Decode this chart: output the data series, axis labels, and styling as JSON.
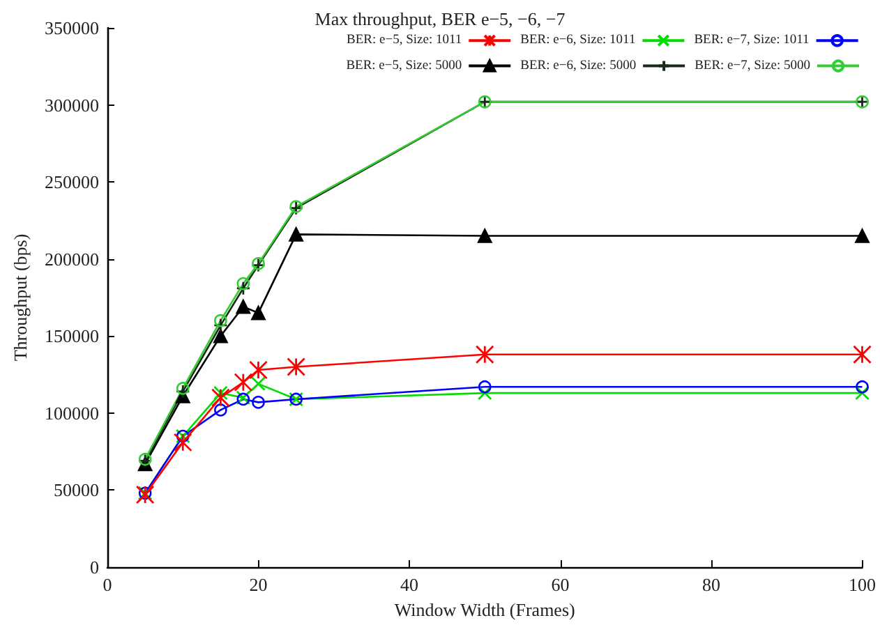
{
  "chart_data": {
    "type": "line",
    "title": "Max throughput, BER e−5, −6, −7",
    "xlabel": "Window Width (Frames)",
    "ylabel": "Throughput (bps)",
    "x": [
      5,
      10,
      15,
      18,
      20,
      25,
      50,
      100
    ],
    "xlim": [
      0,
      100
    ],
    "xticks": [
      0,
      20,
      40,
      60,
      80,
      100
    ],
    "ylim": [
      0,
      350000
    ],
    "yticks": [
      0,
      50000,
      100000,
      150000,
      200000,
      250000,
      300000,
      350000
    ],
    "grid": false,
    "legend": "top right",
    "series": [
      {
        "name": "BER: e−5, Size: 1011",
        "color": "#ff0000",
        "marker": "cross",
        "values": [
          47000,
          81000,
          110000,
          120000,
          128000,
          130000,
          138000,
          138000
        ]
      },
      {
        "name": "BER: e−6, Size: 1011",
        "color": "#00dd00",
        "marker": "cross",
        "values": [
          48000,
          85000,
          113000,
          110000,
          119000,
          109000,
          113000,
          113000
        ]
      },
      {
        "name": "BER: e−7, Size: 1011",
        "color": "#0000ff",
        "marker": "circle",
        "values": [
          48000,
          85000,
          102000,
          109000,
          107000,
          109000,
          117000,
          117000
        ]
      },
      {
        "name": "BER: e−5, Size: 5000",
        "color": "#000000",
        "marker": "triangle",
        "values": [
          67000,
          111000,
          150000,
          169000,
          165000,
          216000,
          215000,
          215000
        ]
      },
      {
        "name": "BER: e−6, Size: 5000",
        "color": "#1a2a1a",
        "marker": "plus",
        "values": [
          69000,
          114000,
          157000,
          181000,
          196000,
          233000,
          302000,
          302000
        ]
      },
      {
        "name": "BER: e−7, Size: 5000",
        "color": "#33cc33",
        "marker": "circle",
        "values": [
          70000,
          116000,
          160000,
          184000,
          197000,
          234000,
          302000,
          302000
        ]
      }
    ]
  }
}
